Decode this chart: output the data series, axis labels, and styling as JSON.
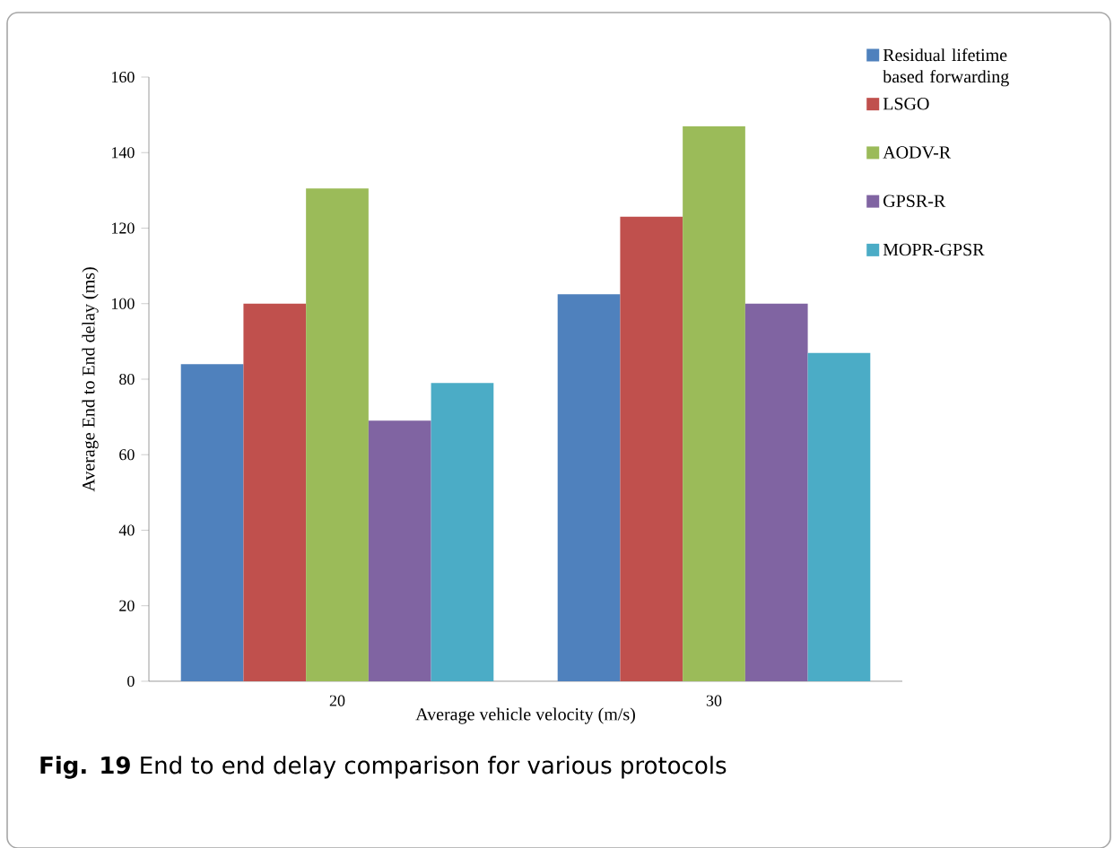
{
  "chart_data": {
    "type": "bar",
    "xlabel": "Average vehicle velocity (m/s)",
    "ylabel": "Average End to End delay (ms)",
    "categories": [
      "20",
      "30"
    ],
    "series": [
      {
        "name": "Residual lifetime based forwarding",
        "color": "#4f81bd",
        "values": [
          84,
          102.5
        ]
      },
      {
        "name": "LSGO",
        "color": "#c0504d",
        "values": [
          100,
          123
        ]
      },
      {
        "name": "AODV-R",
        "color": "#9bbb59",
        "values": [
          130.5,
          147
        ]
      },
      {
        "name": "GPSR-R",
        "color": "#8064a2",
        "values": [
          69,
          100
        ]
      },
      {
        "name": "MOPR-GPSR",
        "color": "#4bacc6",
        "values": [
          79,
          87
        ]
      }
    ],
    "ylim": [
      0,
      160
    ],
    "yticks": [
      0,
      20,
      40,
      60,
      80,
      100,
      120,
      140,
      160
    ],
    "grid": false,
    "legend": "top right",
    "annotations": [
      "**Fig. 19** End to end delay comparison for various protocols"
    ]
  }
}
